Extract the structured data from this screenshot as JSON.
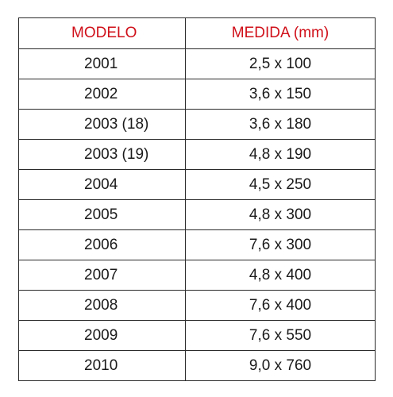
{
  "table": {
    "headers": [
      "MODELO",
      "MEDIDA (mm)"
    ],
    "colors": {
      "header_text": "#d0101a",
      "cell_text": "#1a1a1a",
      "border": "#2a2a2a"
    },
    "rows": [
      {
        "modelo": "2001",
        "medida": "2,5 x 100"
      },
      {
        "modelo": "2002",
        "medida": "3,6 x 150"
      },
      {
        "modelo": "2003 (18)",
        "medida": "3,6 x 180"
      },
      {
        "modelo": "2003 (19)",
        "medida": "4,8 x 190"
      },
      {
        "modelo": "2004",
        "medida": "4,5 x 250"
      },
      {
        "modelo": "2005",
        "medida": "4,8 x 300"
      },
      {
        "modelo": "2006",
        "medida": "7,6 x 300"
      },
      {
        "modelo": "2007",
        "medida": "4,8 x 400"
      },
      {
        "modelo": "2008",
        "medida": "7,6 x 400"
      },
      {
        "modelo": "2009",
        "medida": "7,6 x 550"
      },
      {
        "modelo": "2010",
        "medida": "9,0 x 760"
      }
    ]
  }
}
